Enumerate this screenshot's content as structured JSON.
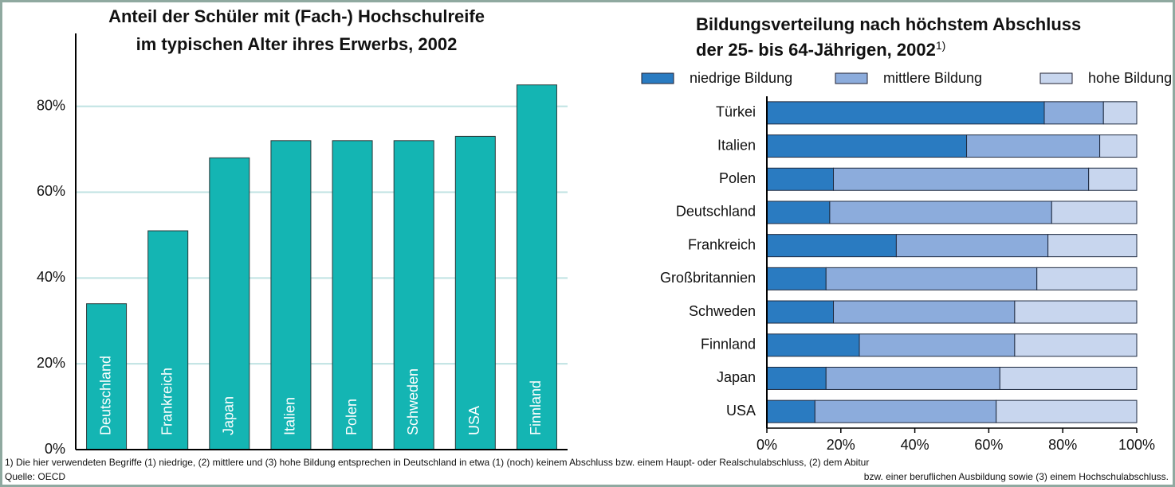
{
  "chart_data": [
    {
      "type": "bar",
      "title": [
        "Anteil der Schüler mit (Fach-) Hochschulreife",
        "im typischen Alter ihres Erwerbs, 2002"
      ],
      "categories": [
        "Deutschland",
        "Frankreich",
        "Japan",
        "Italien",
        "Polen",
        "Schweden",
        "USA",
        "Finnland"
      ],
      "values": [
        34,
        51,
        68,
        72,
        72,
        72,
        73,
        85
      ],
      "color": "#14b5b3",
      "ylim": [
        0,
        97
      ],
      "yticks": [
        {
          "value": 0,
          "label": "0%"
        },
        {
          "value": 20,
          "label": "20%"
        },
        {
          "value": 40,
          "label": "40%"
        },
        {
          "value": 60,
          "label": "60%"
        },
        {
          "value": 80,
          "label": "80%"
        }
      ],
      "grid": true
    },
    {
      "type": "bar",
      "orientation": "horizontal",
      "stacked": true,
      "title": [
        "Bildungsverteilung nach höchstem Abschluss",
        "der 25- bis 64-Jährigen, 2002"
      ],
      "title_note": "1)",
      "categories": [
        "Türkei",
        "Italien",
        "Polen",
        "Deutschland",
        "Frankreich",
        "Großbritannien",
        "Schweden",
        "Finnland",
        "Japan",
        "USA"
      ],
      "series": [
        {
          "name": "niedrige Bildung",
          "color": "#2a7bc1",
          "values": [
            75,
            54,
            18,
            17,
            35,
            16,
            18,
            25,
            16,
            13
          ]
        },
        {
          "name": "mittlere Bildung",
          "color": "#8cacdc",
          "values": [
            16,
            36,
            69,
            60,
            41,
            57,
            49,
            42,
            47,
            49
          ]
        },
        {
          "name": "hohe Bildung",
          "color": "#c8d6ee",
          "values": [
            9,
            10,
            13,
            23,
            24,
            27,
            33,
            33,
            37,
            38
          ]
        }
      ],
      "xlim": [
        0,
        100
      ],
      "xticks": [
        {
          "value": 0,
          "label": "0%"
        },
        {
          "value": 20,
          "label": "20%"
        },
        {
          "value": 40,
          "label": "40%"
        },
        {
          "value": 60,
          "label": "60%"
        },
        {
          "value": 80,
          "label": "80%"
        },
        {
          "value": 100,
          "label": "100%"
        }
      ],
      "legend": "top"
    }
  ],
  "footnote": [
    "1) Die hier verwendeten Begriffe (1) niedrige, (2) mittlere und (3) hohe Bildung entsprechen in Deutschland in etwa (1) (noch) keinem Abschluss bzw. einem Haupt- oder Realschulabschluss, (2) dem Abitur",
    "bzw. einer beruflichen Ausbildung sowie (3) einem Hochschulabschluss."
  ],
  "source": "Quelle: OECD"
}
